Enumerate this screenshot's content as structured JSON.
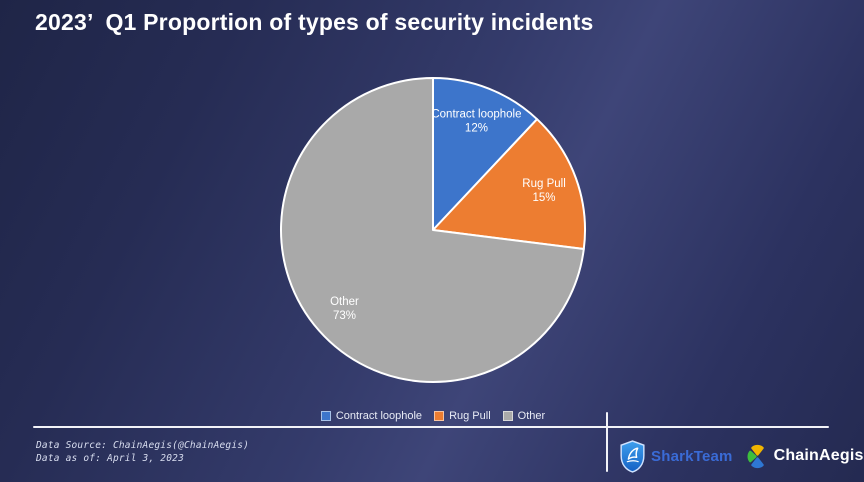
{
  "title": "2023’  Q1 Proportion of types of security incidents",
  "chart_data": {
    "type": "pie",
    "title": "2023’ Q1 Proportion of types of security incidents",
    "start_angle_deg": 0,
    "direction": "clockwise",
    "legend_position": "bottom",
    "data_labels": "category name and percentage inside slices",
    "slices": [
      {
        "label": "Contract loophole",
        "value": 12,
        "percent": "12%",
        "color": "#3D75CB"
      },
      {
        "label": "Rug Pull",
        "value": 15,
        "percent": "15%",
        "color": "#ED7D31"
      },
      {
        "label": "Other",
        "value": 73,
        "percent": "73%",
        "color": "#A9A9A9"
      }
    ]
  },
  "footer": {
    "source_line1": "Data Source: ChainAegis(@ChainAegis)",
    "source_line2": "Data as of: April 3, 2023",
    "logos": [
      {
        "name": "SharkTeam",
        "text": "SharkTeam",
        "text_color": "#3A6BD6"
      },
      {
        "name": "ChainAegis",
        "text": "ChainAegis",
        "text_color": "#FFFFFF"
      }
    ]
  },
  "colors": {
    "background_dark": "#242A51",
    "background_light_band": "#3E4578",
    "title_text": "#FFFFFF",
    "divider_lines": "#F2F3F8",
    "slice_border": "#FFFFFF",
    "chainaegis_icon": {
      "yellow": "#F0B400",
      "green": "#3DBE3D",
      "blue": "#2E77D3"
    },
    "sharkteam_shield": "#2D86E0"
  }
}
